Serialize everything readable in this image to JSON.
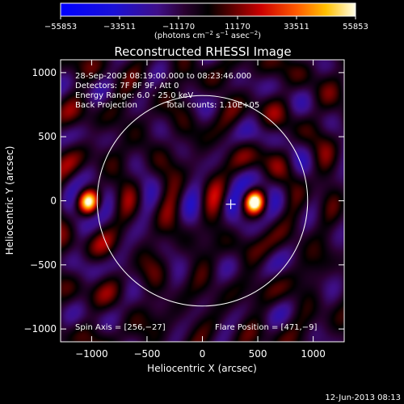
{
  "chart_data": {
    "type": "heatmap",
    "title": "Reconstructed RHESSI Image",
    "xlabel": "Heliocentric X (arcsec)",
    "ylabel": "Heliocentric Y (arcsec)",
    "xlim": [
      -1280,
      1280
    ],
    "ylim": [
      -1100,
      1100
    ],
    "x_ticks": [
      -1000,
      -500,
      0,
      500,
      1000
    ],
    "y_ticks": [
      -1000,
      -500,
      0,
      500,
      1000
    ],
    "x_tick_labels": [
      "−1000",
      "−500",
      "0",
      "500",
      "1000"
    ],
    "y_tick_labels": [
      "−1000",
      "−500",
      "0",
      "500",
      "1000"
    ],
    "colorbar": {
      "ticks": [
        -55853,
        -33511,
        -11170,
        11170,
        33511,
        55853
      ],
      "tick_labels": [
        "−55853",
        "−33511",
        "−11170",
        "11170",
        "33511",
        "55853"
      ],
      "units_main": "(photons cm",
      "units_exp1": "−2",
      "units_mid": " s",
      "units_exp2": "−1",
      "units_end": " asec",
      "units_exp3": "−2",
      "units_close": ")"
    },
    "annotations": {
      "time_range": "28-Sep-2003 08:19:00.000 to 08:23:46.000",
      "detectors": "Detectors: 7F 8F 9F, Att 0",
      "energy": "Energy Range: 6.0 - 25.0 keV",
      "method": "Back Projection",
      "counts": "Total counts: 1.10E+05",
      "spin_axis": "Spin Axis = [256,−27]",
      "flare_position": "Flare Position = [471,−9]"
    },
    "solar_disk": {
      "center": [
        0,
        0
      ],
      "radius_arcsec": 950
    },
    "crosshair": [
      256,
      -27
    ],
    "sources": [
      {
        "x": 471,
        "y": -9,
        "sigma": 55,
        "amp": 1.0
      },
      {
        "x": -1030,
        "y": -9,
        "sigma": 60,
        "amp": 0.95
      },
      {
        "x": 256,
        "y": -27,
        "sigma": 60,
        "amp": -0.15
      }
    ],
    "colors": {
      "background": "#000000",
      "foreground": "#ffffff"
    }
  },
  "footer": {
    "timestamp": "12-Jun-2013 08:13"
  }
}
